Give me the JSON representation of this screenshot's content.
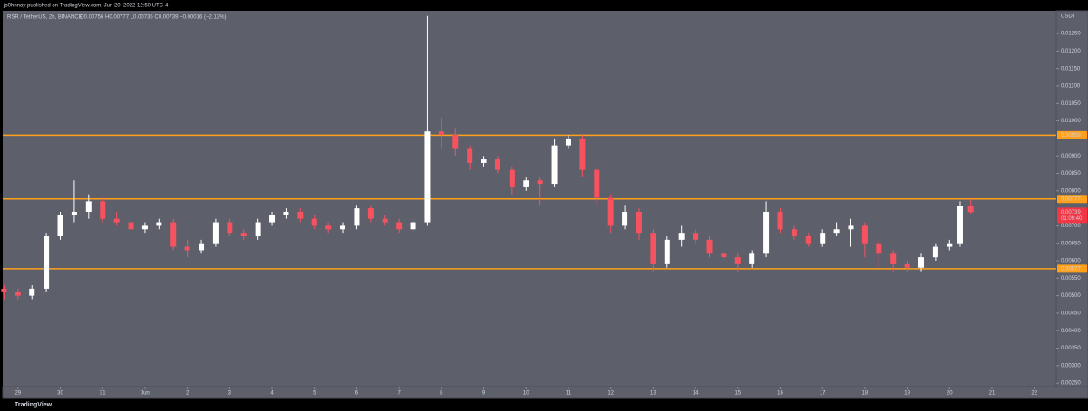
{
  "header": {
    "publisher": "jo0hnnay published on TradingView.com, Jun 20, 2022 12:50 UTC-4",
    "logo": "TradingView"
  },
  "chart_data": {
    "type": "candlestick",
    "title": "RSR / TetherUS, 2h, BINANCE",
    "legend_values": "O0.00756 H0.00777 L0.00735 C0.00739 −0.00016 (−2.12%)",
    "y_axis_label": "USDT",
    "up_color": "#ffffff",
    "down_color": "#f7525f",
    "level_color": "#ff9f1a",
    "last_color": "#f23645",
    "x": [
      -0.33,
      0,
      0.33,
      0.67,
      1,
      1.33,
      1.67,
      2,
      2.33,
      2.67,
      3,
      3.33,
      3.67,
      4,
      4.33,
      4.67,
      5,
      5.33,
      5.67,
      6,
      6.33,
      6.67,
      7,
      7.33,
      7.67,
      8,
      8.33,
      8.67,
      9,
      9.33,
      9.67,
      10,
      10.33,
      10.67,
      11,
      11.33,
      11.67,
      12,
      12.33,
      12.67,
      13,
      13.33,
      13.67,
      14,
      14.33,
      14.67,
      15,
      15.33,
      15.67,
      16,
      16.33,
      16.67,
      17,
      17.33,
      17.67,
      18,
      18.33,
      18.67,
      19,
      19.33,
      19.67,
      20,
      20.33,
      20.67,
      21,
      21.33,
      21.67,
      22,
      22.25,
      22.5
    ],
    "open": [
      0.0052,
      0.0051,
      0.005,
      0.0052,
      0.0067,
      0.0073,
      0.0074,
      0.0077,
      0.0072,
      0.0071,
      0.0069,
      0.007,
      0.0071,
      0.0064,
      0.0063,
      0.0065,
      0.0071,
      0.0068,
      0.0067,
      0.0071,
      0.0073,
      0.0074,
      0.0072,
      0.007,
      0.0069,
      0.007,
      0.0075,
      0.0072,
      0.0071,
      0.0069,
      0.0071,
      0.0097,
      0.0096,
      0.0092,
      0.0088,
      0.0089,
      0.0086,
      0.0081,
      0.0083,
      0.0082,
      0.0093,
      0.0095,
      0.0086,
      0.0078,
      0.007,
      0.0074,
      0.0068,
      0.0059,
      0.0066,
      0.0068,
      0.0066,
      0.0062,
      0.0061,
      0.0059,
      0.0062,
      0.0074,
      0.0069,
      0.0067,
      0.0065,
      0.0068,
      0.0069,
      0.007,
      0.0065,
      0.0062,
      0.0059,
      0.0058,
      0.0061,
      0.0064,
      0.0065,
      0.00756
    ],
    "high": [
      0.0053,
      0.0052,
      0.0053,
      0.0068,
      0.0074,
      0.0083,
      0.0079,
      0.0078,
      0.0074,
      0.0072,
      0.0071,
      0.0072,
      0.0072,
      0.0066,
      0.0066,
      0.0072,
      0.0072,
      0.0069,
      0.0072,
      0.0074,
      0.0075,
      0.0075,
      0.0073,
      0.0071,
      0.0071,
      0.0076,
      0.0076,
      0.0073,
      0.0072,
      0.0072,
      0.013,
      0.0101,
      0.0098,
      0.0093,
      0.009,
      0.009,
      0.0087,
      0.0084,
      0.0084,
      0.0095,
      0.0096,
      0.0096,
      0.0087,
      0.0079,
      0.0076,
      0.0075,
      0.0069,
      0.0067,
      0.007,
      0.0069,
      0.0067,
      0.0063,
      0.0062,
      0.0063,
      0.0077,
      0.0075,
      0.007,
      0.0068,
      0.0069,
      0.0071,
      0.0072,
      0.0071,
      0.0066,
      0.0063,
      0.006,
      0.0062,
      0.0065,
      0.0066,
      0.0077,
      0.00777
    ],
    "low": [
      0.0049,
      0.0049,
      0.0049,
      0.0051,
      0.0066,
      0.0071,
      0.0072,
      0.0071,
      0.007,
      0.0068,
      0.0068,
      0.0069,
      0.0063,
      0.0061,
      0.0062,
      0.0064,
      0.0067,
      0.0066,
      0.0066,
      0.007,
      0.0072,
      0.0071,
      0.0069,
      0.0068,
      0.0068,
      0.0069,
      0.0071,
      0.007,
      0.0068,
      0.0068,
      0.007,
      0.0092,
      0.009,
      0.0086,
      0.0087,
      0.0085,
      0.0079,
      0.008,
      0.0076,
      0.0081,
      0.0092,
      0.0084,
      0.0076,
      0.0068,
      0.0069,
      0.0066,
      0.0057,
      0.0058,
      0.0064,
      0.0065,
      0.0061,
      0.006,
      0.0057,
      0.0058,
      0.0061,
      0.0068,
      0.0066,
      0.0064,
      0.0064,
      0.0067,
      0.0064,
      0.0061,
      0.0058,
      0.0057,
      0.0057,
      0.0057,
      0.006,
      0.0063,
      0.0064,
      0.00735
    ],
    "close": [
      0.0051,
      0.005,
      0.0052,
      0.0067,
      0.0073,
      0.0074,
      0.0077,
      0.0072,
      0.0071,
      0.0069,
      0.007,
      0.0071,
      0.0064,
      0.0063,
      0.0065,
      0.0071,
      0.0068,
      0.0067,
      0.0071,
      0.0073,
      0.0074,
      0.0072,
      0.007,
      0.0069,
      0.007,
      0.0075,
      0.0072,
      0.0071,
      0.0069,
      0.0071,
      0.0097,
      0.0096,
      0.0092,
      0.0088,
      0.0089,
      0.0086,
      0.0081,
      0.0083,
      0.0082,
      0.0093,
      0.0095,
      0.0086,
      0.0078,
      0.007,
      0.0074,
      0.0068,
      0.0059,
      0.0066,
      0.0068,
      0.0066,
      0.0062,
      0.0061,
      0.0059,
      0.0062,
      0.0074,
      0.0069,
      0.0067,
      0.0065,
      0.0068,
      0.0069,
      0.007,
      0.0065,
      0.0062,
      0.0059,
      0.0058,
      0.0061,
      0.0064,
      0.0065,
      0.00756,
      0.00739
    ],
    "levels": [
      0.00959,
      0.00777,
      0.00577
    ],
    "last_price": 0.00739,
    "countdown": "01:09:40",
    "xlim": [
      -0.36,
      24.52
    ],
    "ylim": [
      0.0024,
      0.01315
    ],
    "xticks": [
      {
        "value": 0,
        "label": "29"
      },
      {
        "value": 1,
        "label": "30"
      },
      {
        "value": 2,
        "label": "31"
      },
      {
        "value": 3,
        "label": "Jun"
      },
      {
        "value": 4,
        "label": "2"
      },
      {
        "value": 5,
        "label": "3"
      },
      {
        "value": 6,
        "label": "4"
      },
      {
        "value": 7,
        "label": "5"
      },
      {
        "value": 8,
        "label": "6"
      },
      {
        "value": 9,
        "label": "7"
      },
      {
        "value": 10,
        "label": "8"
      },
      {
        "value": 11,
        "label": "9"
      },
      {
        "value": 12,
        "label": "10"
      },
      {
        "value": 13,
        "label": "11"
      },
      {
        "value": 14,
        "label": "12"
      },
      {
        "value": 15,
        "label": "13"
      },
      {
        "value": 16,
        "label": "14"
      },
      {
        "value": 17,
        "label": "15"
      },
      {
        "value": 18,
        "label": "16"
      },
      {
        "value": 19,
        "label": "17"
      },
      {
        "value": 20,
        "label": "18"
      },
      {
        "value": 21,
        "label": "19"
      },
      {
        "value": 22,
        "label": "20"
      },
      {
        "value": 23,
        "label": "21"
      },
      {
        "value": 24,
        "label": "22"
      }
    ],
    "yticks": [
      {
        "value": 0.0125,
        "label": "0.01250"
      },
      {
        "value": 0.012,
        "label": "0.01200"
      },
      {
        "value": 0.0115,
        "label": "0.01150"
      },
      {
        "value": 0.011,
        "label": "0.01100"
      },
      {
        "value": 0.0105,
        "label": "0.01050"
      },
      {
        "value": 0.01,
        "label": "0.01000"
      },
      {
        "value": 0.009,
        "label": "0.00900"
      },
      {
        "value": 0.0085,
        "label": "0.00850"
      },
      {
        "value": 0.008,
        "label": "0.00800"
      },
      {
        "value": 0.007,
        "label": "0.00700"
      },
      {
        "value": 0.0065,
        "label": "0.00650"
      },
      {
        "value": 0.006,
        "label": "0.00600"
      },
      {
        "value": 0.0055,
        "label": "0.00550"
      },
      {
        "value": 0.005,
        "label": "0.00500"
      },
      {
        "value": 0.0045,
        "label": "0.00450"
      },
      {
        "value": 0.004,
        "label": "0.00400"
      },
      {
        "value": 0.0035,
        "label": "0.00350"
      },
      {
        "value": 0.003,
        "label": "0.00300"
      },
      {
        "value": 0.0025,
        "label": "0.00250"
      }
    ],
    "grid": false
  }
}
